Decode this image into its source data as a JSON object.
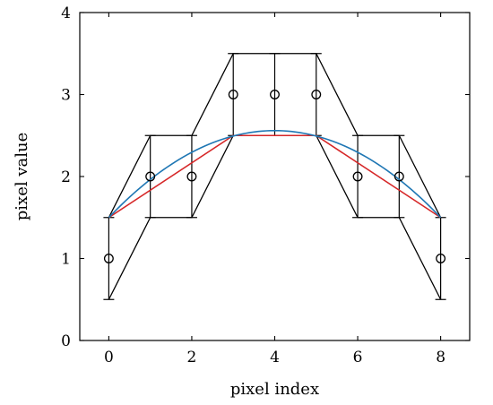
{
  "chart_data": {
    "type": "line",
    "title": "",
    "xlabel": "pixel index",
    "ylabel": "pixel value",
    "xlim": [
      -0.7,
      8.7
    ],
    "ylim": [
      0,
      4
    ],
    "xticks": [
      0,
      2,
      4,
      6,
      8
    ],
    "yticks": [
      0,
      1,
      2,
      3,
      4
    ],
    "grid": false,
    "points": {
      "x": [
        0,
        1,
        2,
        3,
        4,
        5,
        6,
        7,
        8
      ],
      "y": [
        1,
        2,
        2,
        3,
        3,
        3,
        2,
        2,
        1
      ],
      "marker": "circle"
    },
    "error_bar_half_width": 0.5,
    "envelope": {
      "upper": [
        1.5,
        2.5,
        2.5,
        3.5,
        3.5,
        3.5,
        2.5,
        2.5,
        1.5
      ],
      "lower": [
        0.5,
        1.5,
        1.5,
        2.5,
        2.5,
        2.5,
        1.5,
        1.5,
        0.5
      ]
    },
    "series": [
      {
        "color": "#d62728",
        "x": [
          0,
          3,
          5,
          8
        ],
        "y": [
          1.5,
          2.5,
          2.5,
          1.5
        ]
      },
      {
        "color": "#1f77b4",
        "curve": "quadratic",
        "x": [
          0,
          4,
          8
        ],
        "y": [
          1.5,
          2.56,
          1.5
        ]
      }
    ]
  }
}
